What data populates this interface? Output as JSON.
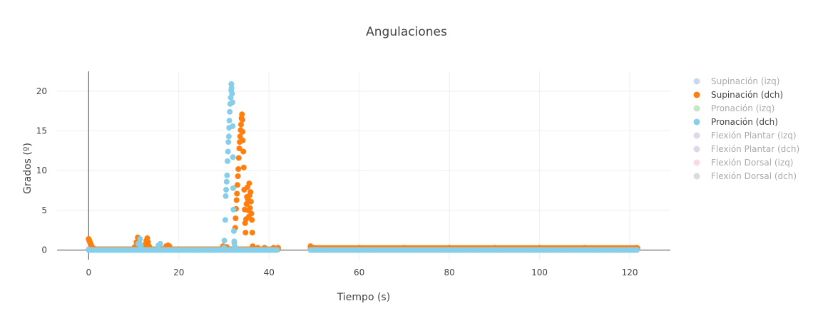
{
  "chart_data": {
    "type": "scatter",
    "title": "Angulaciones",
    "xlabel": "Tiempo (s)",
    "ylabel": "Grados (º)",
    "xlim": [
      -7,
      129
    ],
    "ylim": [
      -1.2,
      22.5
    ],
    "x_ticks": [
      0,
      20,
      40,
      60,
      80,
      100,
      120
    ],
    "y_ticks": [
      0,
      5,
      10,
      15,
      20
    ],
    "grid": true,
    "legend_position": "right",
    "series": [
      {
        "name": "Supinación (izq)",
        "color": "#8fb4d9",
        "visible": false,
        "points": []
      },
      {
        "name": "Supinación (dch)",
        "color": "#ff7f0e",
        "visible": true,
        "points": [
          [
            0,
            1.4
          ],
          [
            0.1,
            1.3
          ],
          [
            0.2,
            1.1
          ],
          [
            0.3,
            1.0
          ],
          [
            0.4,
            0.85
          ],
          [
            0.5,
            0.7
          ],
          [
            0.6,
            0.55
          ],
          [
            0.7,
            0.45
          ],
          [
            0.8,
            0.35
          ],
          [
            1.0,
            0.25
          ],
          [
            1.3,
            0.15
          ],
          [
            1.8,
            0.1
          ],
          [
            2.5,
            0.05
          ],
          [
            10.2,
            0.4
          ],
          [
            10.6,
            1.0
          ],
          [
            10.9,
            1.6
          ],
          [
            11.2,
            1.2
          ],
          [
            11.5,
            0.6
          ],
          [
            11.8,
            0.2
          ],
          [
            12.5,
            0.7
          ],
          [
            12.8,
            1.2
          ],
          [
            13.0,
            1.5
          ],
          [
            13.2,
            1.0
          ],
          [
            13.4,
            0.5
          ],
          [
            15.8,
            0.3
          ],
          [
            17.2,
            0.5
          ],
          [
            17.6,
            0.6
          ],
          [
            17.9,
            0.5
          ],
          [
            29.8,
            0.5
          ],
          [
            30.6,
            0.4
          ],
          [
            31.0,
            0.1
          ],
          [
            32.3,
            1.0
          ],
          [
            32.5,
            2.8
          ],
          [
            32.6,
            4.0
          ],
          [
            32.7,
            5.2
          ],
          [
            32.8,
            6.3
          ],
          [
            32.9,
            7.1
          ],
          [
            33.0,
            8.2
          ],
          [
            33.1,
            9.3
          ],
          [
            33.2,
            10.2
          ],
          [
            33.3,
            11.6
          ],
          [
            33.4,
            12.8
          ],
          [
            33.5,
            13.6
          ],
          [
            33.6,
            14.3
          ],
          [
            33.7,
            15.1
          ],
          [
            33.8,
            15.8
          ],
          [
            33.9,
            16.6
          ],
          [
            34.0,
            17.1
          ],
          [
            34.1,
            16.4
          ],
          [
            34.15,
            14.9
          ],
          [
            34.2,
            13.8
          ],
          [
            34.3,
            12.4
          ],
          [
            34.4,
            10.4
          ],
          [
            34.5,
            7.6
          ],
          [
            34.6,
            5.1
          ],
          [
            34.7,
            3.4
          ],
          [
            34.8,
            2.2
          ],
          [
            34.9,
            3.9
          ],
          [
            35.0,
            5.8
          ],
          [
            35.1,
            6.7
          ],
          [
            35.2,
            7.9
          ],
          [
            35.3,
            6.4
          ],
          [
            35.4,
            5.0
          ],
          [
            35.5,
            4.2
          ],
          [
            35.6,
            8.4
          ],
          [
            35.7,
            6.9
          ],
          [
            35.8,
            5.3
          ],
          [
            35.9,
            7.3
          ],
          [
            36.0,
            6.1
          ],
          [
            36.1,
            4.6
          ],
          [
            36.2,
            3.8
          ],
          [
            36.3,
            2.2
          ],
          [
            36.4,
            0.5
          ],
          [
            37.5,
            0.3
          ],
          [
            39.0,
            0.3
          ],
          [
            41.0,
            0.3
          ],
          [
            42.0,
            0.3
          ],
          [
            49.2,
            0.5
          ],
          [
            50.0,
            0.3
          ],
          [
            60.0,
            0.3
          ],
          [
            70.0,
            0.3
          ],
          [
            80.0,
            0.3
          ],
          [
            90.0,
            0.3
          ],
          [
            100.0,
            0.3
          ],
          [
            110.0,
            0.3
          ],
          [
            121.5,
            0.3
          ]
        ]
      },
      {
        "name": "Pronación (izq)",
        "color": "#8ccf8c",
        "visible": false,
        "points": []
      },
      {
        "name": "Pronación (dch)",
        "color": "#87ceeb",
        "visible": true,
        "points": [
          [
            0,
            0.1
          ],
          [
            11.0,
            0.8
          ],
          [
            11.4,
            1.4
          ],
          [
            11.6,
            0.6
          ],
          [
            15.5,
            0.6
          ],
          [
            15.9,
            0.8
          ],
          [
            30.0,
            0.3
          ],
          [
            30.1,
            1.2
          ],
          [
            30.3,
            3.8
          ],
          [
            30.4,
            6.8
          ],
          [
            30.5,
            7.6
          ],
          [
            30.6,
            8.6
          ],
          [
            30.7,
            9.4
          ],
          [
            30.8,
            11.2
          ],
          [
            30.9,
            12.4
          ],
          [
            31.0,
            13.6
          ],
          [
            31.1,
            14.3
          ],
          [
            31.15,
            15.4
          ],
          [
            31.2,
            16.3
          ],
          [
            31.3,
            17.4
          ],
          [
            31.4,
            18.4
          ],
          [
            31.5,
            19.2
          ],
          [
            31.6,
            20.1
          ],
          [
            31.65,
            20.9
          ],
          [
            31.7,
            20.4
          ],
          [
            31.8,
            19.7
          ],
          [
            31.9,
            18.6
          ],
          [
            31.95,
            15.6
          ],
          [
            32.0,
            11.7
          ],
          [
            32.05,
            7.8
          ],
          [
            32.1,
            5.1
          ],
          [
            32.2,
            2.4
          ],
          [
            32.3,
            1.1
          ],
          [
            32.4,
            0.5
          ],
          [
            2.0,
            0.05
          ],
          [
            50.0,
            0.05
          ],
          [
            121.5,
            0.05
          ]
        ]
      },
      {
        "name": "Flexión Plantar (izq)",
        "color": "#c5b0d5",
        "visible": false,
        "points": []
      },
      {
        "name": "Flexión Plantar (dch)",
        "color": "#c5b0d5",
        "visible": false,
        "points": []
      },
      {
        "name": "Flexión Dorsal (izq)",
        "color": "#f7b6d2",
        "visible": false,
        "points": []
      },
      {
        "name": "Flexión Dorsal (dch)",
        "color": "#b8b8b8",
        "visible": false,
        "points": []
      }
    ],
    "dense_segments": [
      {
        "series": 1,
        "x_from": 0.5,
        "x_to": 42.0,
        "y": 0.1,
        "step": 0.25
      },
      {
        "series": 1,
        "x_from": 49.2,
        "x_to": 121.8,
        "y": 0.25,
        "step": 0.25
      },
      {
        "series": 3,
        "x_from": 0,
        "x_to": 42.0,
        "y": 0.02,
        "step": 0.2
      },
      {
        "series": 3,
        "x_from": 49.2,
        "x_to": 121.8,
        "y": 0.02,
        "step": 0.2
      }
    ]
  }
}
